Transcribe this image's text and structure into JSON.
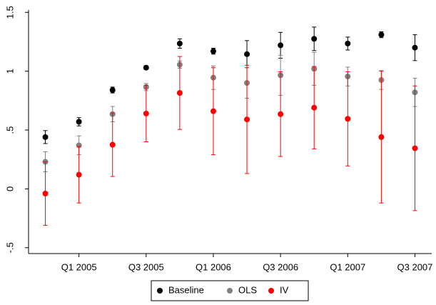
{
  "chart_data": {
    "type": "errorbar",
    "categories": [
      null,
      "Q1 2005",
      null,
      "Q3 2005",
      null,
      "Q1 2006",
      null,
      "Q3 2006",
      null,
      "Q1 2007",
      null,
      "Q3 2007"
    ],
    "series": [
      {
        "name": "Baseline",
        "color": "#000000",
        "values": [
          0.44,
          0.57,
          0.84,
          1.03,
          1.235,
          1.17,
          1.145,
          1.22,
          1.275,
          1.235,
          1.31,
          1.2
        ],
        "errors": [
          0.055,
          0.035,
          0.025,
          0.015,
          0.04,
          0.025,
          0.115,
          0.11,
          0.1,
          0.055,
          0.025,
          0.11
        ]
      },
      {
        "name": "OLS",
        "color": "#808080",
        "values": [
          0.23,
          0.37,
          0.635,
          0.865,
          1.055,
          0.945,
          0.9,
          0.965,
          1.02,
          0.955,
          0.925,
          0.82
        ],
        "errors": [
          0.085,
          0.08,
          0.065,
          0.03,
          0.03,
          0.1,
          0.13,
          0.17,
          0.14,
          0.08,
          0.08,
          0.12
        ]
      },
      {
        "name": "IV",
        "color": "#ff0000",
        "values": [
          -0.04,
          0.12,
          0.375,
          0.64,
          0.815,
          0.66,
          0.59,
          0.635,
          0.69,
          0.595,
          0.44,
          0.345
        ],
        "errors": [
          0.27,
          0.24,
          0.27,
          0.24,
          0.31,
          0.37,
          0.46,
          0.36,
          0.35,
          0.4,
          0.56,
          0.53
        ]
      }
    ],
    "ylim": [
      -0.55,
      1.52
    ],
    "yticks": [
      {
        "value": -0.5,
        "label": "-.5"
      },
      0,
      {
        "value": 0.5,
        "label": ".5"
      },
      1,
      {
        "value": 1.5,
        "label": "1.5"
      }
    ],
    "grid": false,
    "legend": "bottom"
  }
}
